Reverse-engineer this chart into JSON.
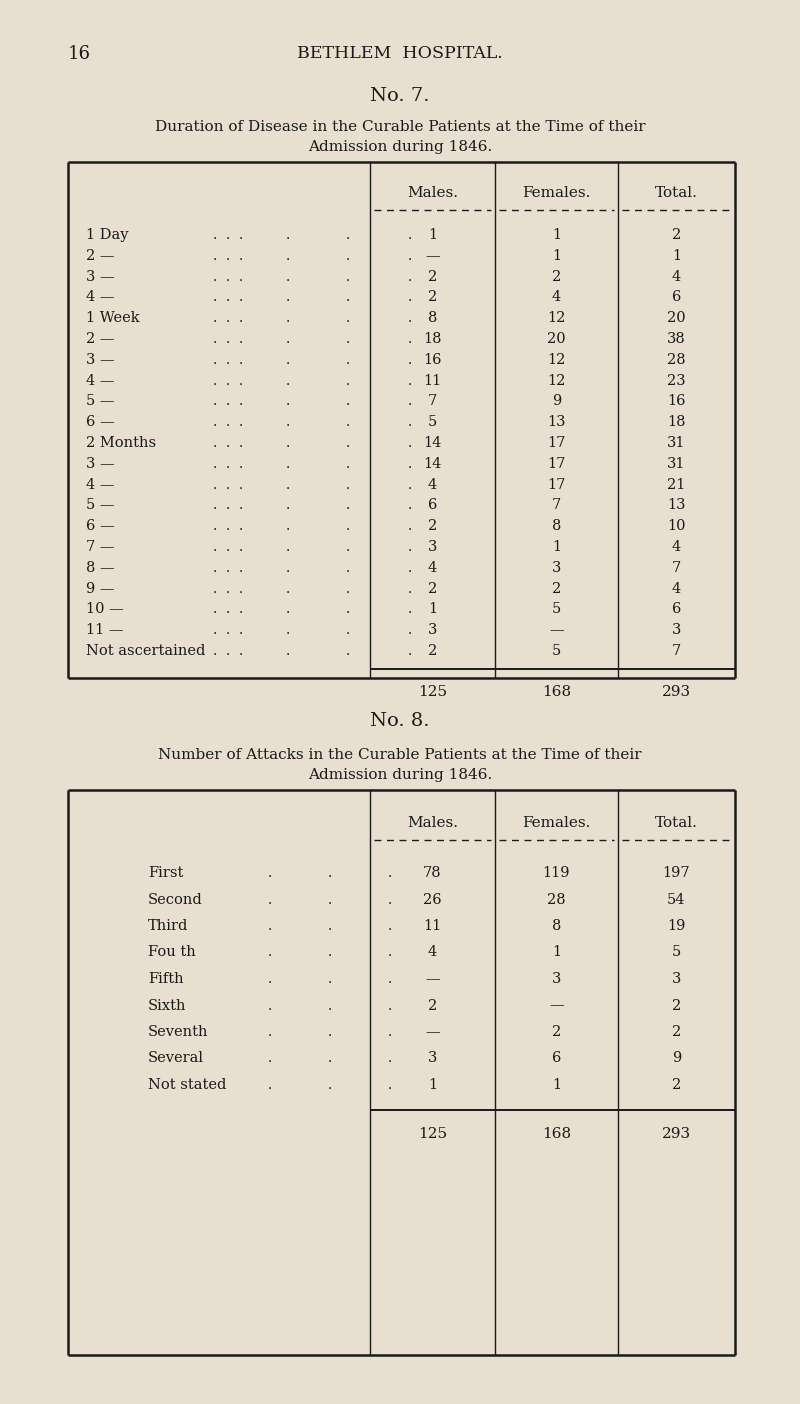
{
  "bg_color": "#e8dfd0",
  "text_color": "#1a1a1a",
  "page_number": "16",
  "page_header": "BETHLEM  HOSPITAL.",
  "table1": {
    "number": "No. 7.",
    "title_line1": "Duration of Disease in the Curable Patients at the Time of their",
    "title_line2": "Admission during 1846.",
    "col_headers": [
      "Males.",
      "Females.",
      "Total."
    ],
    "rows": [
      [
        "1 Day",
        "1",
        "1",
        "2"
      ],
      [
        "2 —",
        "—",
        "1",
        "1"
      ],
      [
        "3 —",
        "2",
        "2",
        "4"
      ],
      [
        "4 —",
        "2",
        "4",
        "6"
      ],
      [
        "1 Week",
        "8",
        "12",
        "20"
      ],
      [
        "2 —",
        "18",
        "20",
        "38"
      ],
      [
        "3 —",
        "16",
        "12",
        "28"
      ],
      [
        "4 —",
        "11",
        "12",
        "23"
      ],
      [
        "5 —",
        "7",
        "9",
        "16"
      ],
      [
        "6 —",
        "5",
        "13",
        "18"
      ],
      [
        "2 Months",
        "14",
        "17",
        "31"
      ],
      [
        "3 —",
        "14",
        "17",
        "31"
      ],
      [
        "4 —",
        "4",
        "17",
        "21"
      ],
      [
        "5 —",
        "6",
        "7",
        "13"
      ],
      [
        "6 —",
        "2",
        "8",
        "10"
      ],
      [
        "7 —",
        "3",
        "1",
        "4"
      ],
      [
        "8 —",
        "4",
        "3",
        "7"
      ],
      [
        "9 —",
        "2",
        "2",
        "4"
      ],
      [
        "10 —",
        "1",
        "5",
        "6"
      ],
      [
        "11 —",
        "3",
        "—",
        "3"
      ],
      [
        "Not ascertained",
        "2",
        "5",
        "7"
      ]
    ],
    "totals": [
      "125",
      "168",
      "293"
    ]
  },
  "table2": {
    "number": "No. 8.",
    "title_line1": "Number of Attacks in the Curable Patients at the Time of their",
    "title_line2": "Admission during 1846.",
    "col_headers": [
      "Males.",
      "Females.",
      "Total."
    ],
    "rows": [
      [
        "First",
        "78",
        "119",
        "197"
      ],
      [
        "Second",
        "26",
        "28",
        "54"
      ],
      [
        "Third",
        "11",
        "8",
        "19"
      ],
      [
        "Fou th",
        "4",
        "1",
        "5"
      ],
      [
        "Fifth",
        "—",
        "3",
        "3"
      ],
      [
        "Sixth",
        "2",
        "—",
        "2"
      ],
      [
        "Seventh",
        "—",
        "2",
        "2"
      ],
      [
        "Several",
        "3",
        "6",
        "9"
      ],
      [
        "Not stated",
        "1",
        "1",
        "2"
      ]
    ],
    "totals": [
      "125",
      "168",
      "293"
    ]
  }
}
